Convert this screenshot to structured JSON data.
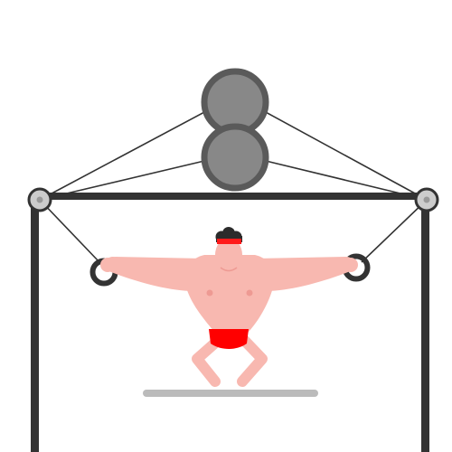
{
  "scene": {
    "subject": "cable-crossover-fly",
    "colors": {
      "background": "#ffffff",
      "frame": "#333333",
      "cable": "#333333",
      "weight_plate_fill": "#888888",
      "weight_plate_rim": "#5a5a5a",
      "pulley_fill": "#cccccc",
      "pulley_hub": "#999999",
      "skin": "#f8b8b0",
      "skin_shade": "#ee9a93",
      "shorts": "#ff0000",
      "headband": "#ff1a1a",
      "hair": "#2b2b2b",
      "floor_mat": "#bbbbbb"
    },
    "weight_stack": {
      "plate_count": 2
    },
    "icons": [
      "weight-plate-icon",
      "pulley-icon",
      "handle-ring-icon",
      "athlete-icon"
    ]
  }
}
